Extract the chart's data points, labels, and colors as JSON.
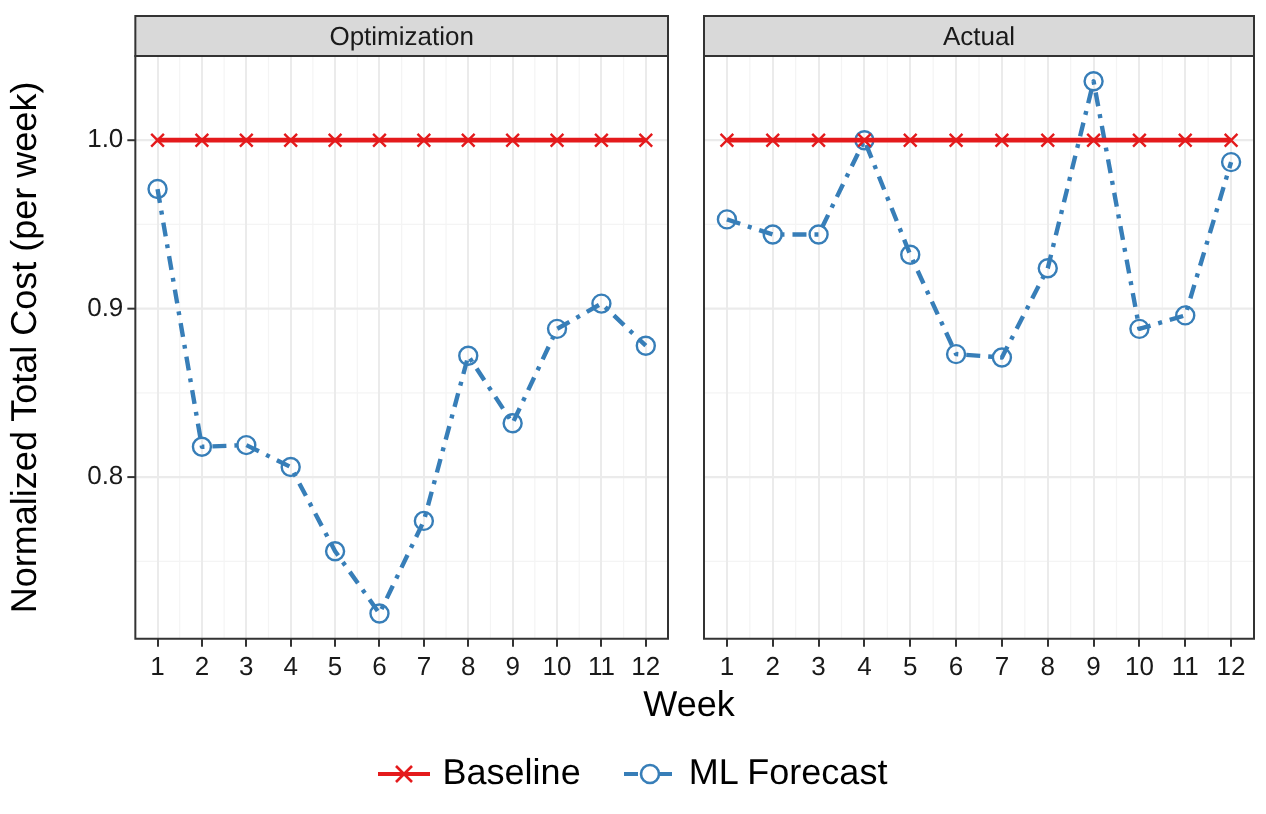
{
  "chart_data": [
    {
      "type": "line",
      "title": "Optimization",
      "xlabel": "Week",
      "ylabel": "Normalized Total Cost (per week)",
      "categories": [
        "1",
        "2",
        "3",
        "4",
        "5",
        "6",
        "7",
        "8",
        "9",
        "10",
        "11",
        "12"
      ],
      "ylim": [
        0.704,
        1.05
      ],
      "yticks": [
        0.8,
        0.9,
        {
          "value": 1.0,
          "label": "1.0"
        }
      ],
      "grid": true,
      "legend": "bottom",
      "series": [
        {
          "name": "Baseline",
          "color": "#e41a1c",
          "marker": "cross",
          "line_style": "solid",
          "values": [
            1,
            1,
            1,
            1,
            1,
            1,
            1,
            1,
            1,
            1,
            1,
            1
          ]
        },
        {
          "name": "ML Forecast",
          "color": "#377eb8",
          "marker": "circle",
          "line_style": "dashed",
          "values": [
            0.971,
            0.818,
            0.819,
            0.806,
            0.756,
            0.719,
            0.774,
            0.872,
            0.832,
            0.888,
            0.903,
            0.878
          ]
        }
      ]
    },
    {
      "type": "line",
      "title": "Actual",
      "categories": [
        "1",
        "2",
        "3",
        "4",
        "5",
        "6",
        "7",
        "8",
        "9",
        "10",
        "11",
        "12"
      ],
      "ylim": [
        0.704,
        1.05
      ],
      "yticks": [
        0.8,
        0.9,
        1
      ],
      "grid": true,
      "tick_labels": "x",
      "series": [
        {
          "color": "#e41a1c",
          "marker": "cross",
          "line_style": "solid",
          "values": [
            1,
            1,
            1,
            1,
            1,
            1,
            1,
            1,
            1,
            1,
            1,
            1
          ]
        },
        {
          "color": "#377eb8",
          "marker": "circle",
          "line_style": "dashed",
          "values": [
            0.953,
            0.944,
            0.944,
            1.0,
            0.932,
            0.873,
            0.871,
            0.924,
            1.035,
            0.888,
            0.896,
            0.987
          ]
        }
      ]
    }
  ]
}
